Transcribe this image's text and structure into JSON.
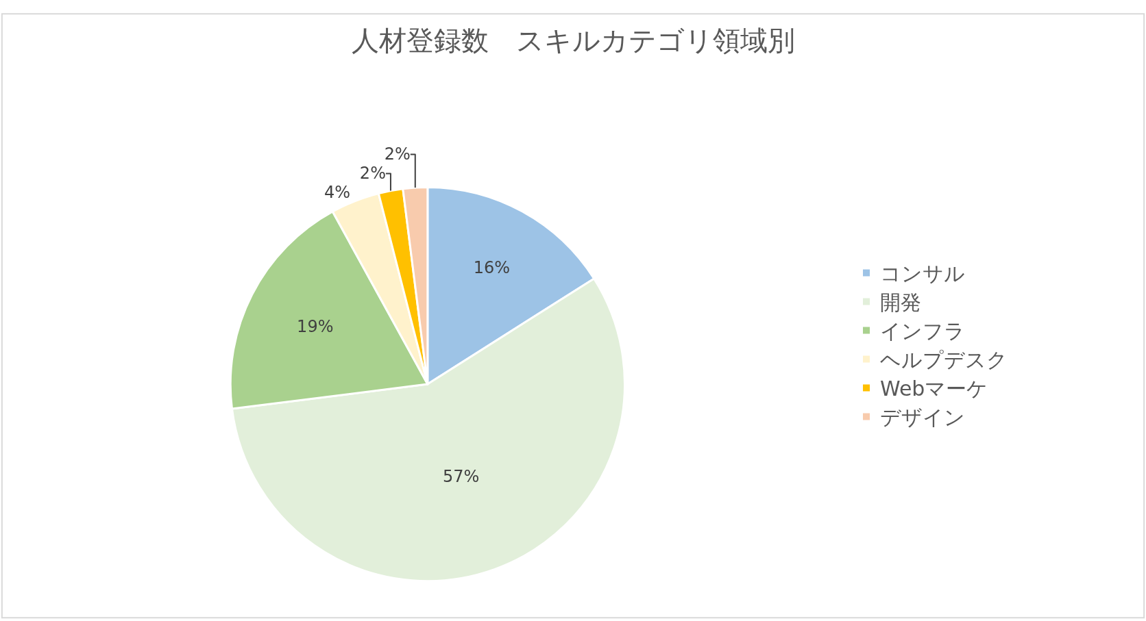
{
  "chart_data": {
    "type": "pie",
    "title": "人材登録数　スキルカテゴリ領域別",
    "categories": [
      "コンサル",
      "開発",
      "インフラ",
      "ヘルプデスク",
      "Webマーケ",
      "デザイン"
    ],
    "values": [
      16,
      57,
      19,
      4,
      2,
      2
    ],
    "colors": [
      "#9dc3e6",
      "#e2efda",
      "#a9d18e",
      "#fff2cc",
      "#ffc000",
      "#f8cbad"
    ],
    "value_labels": [
      "16%",
      "57%",
      "19%",
      "4%",
      "2%",
      "2%"
    ],
    "legend": "right"
  }
}
